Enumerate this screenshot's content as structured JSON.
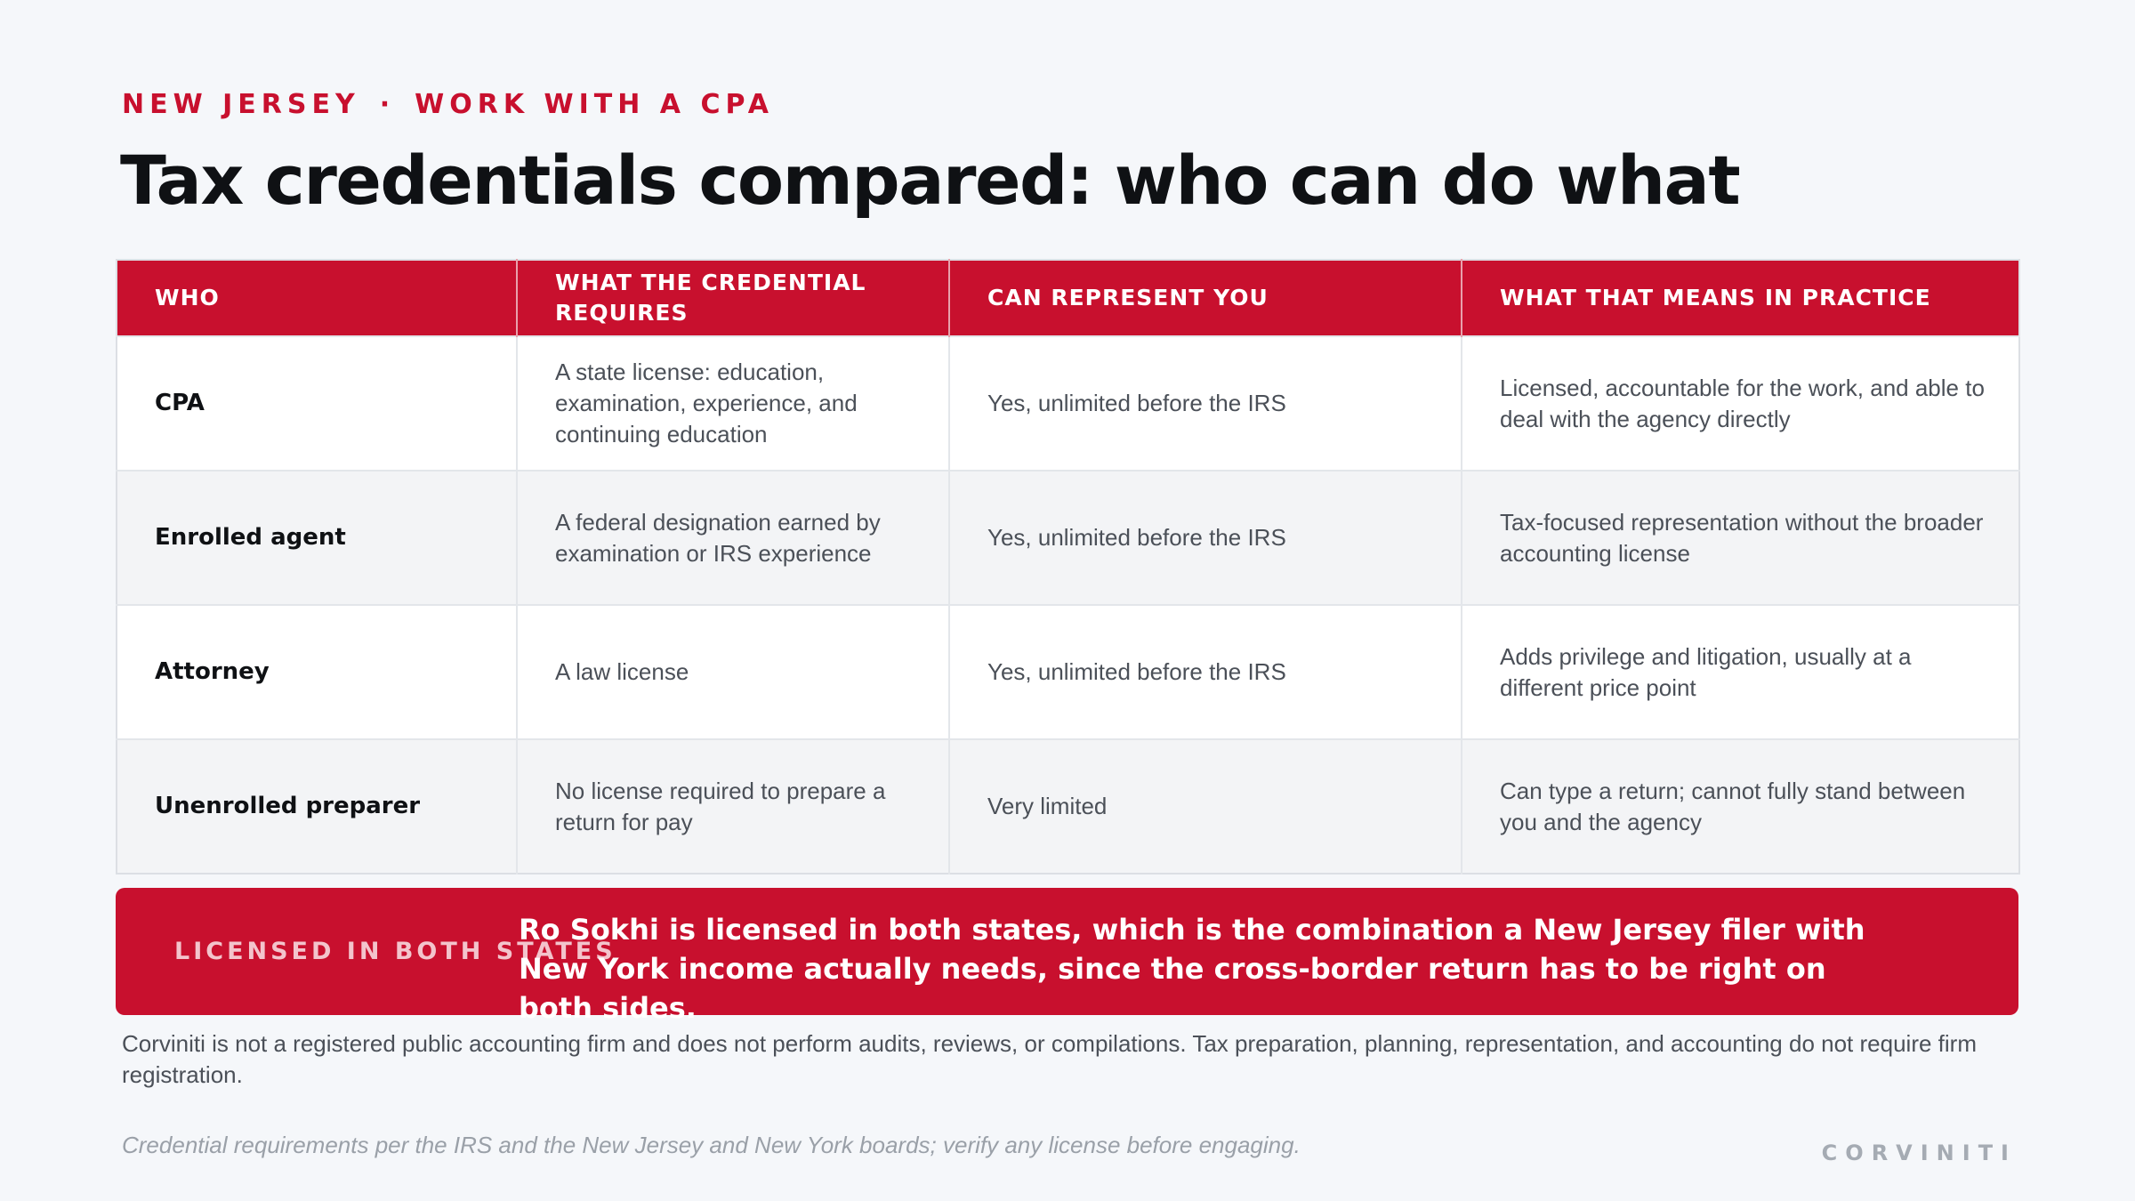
{
  "header": {
    "eyebrow_left": "NEW JERSEY",
    "eyebrow_sep": "·",
    "eyebrow_right": "WORK WITH A CPA",
    "title": "Tax credentials compared: who can do what"
  },
  "table": {
    "columns": [
      "WHO",
      "WHAT THE CREDENTIAL REQUIRES",
      "CAN REPRESENT YOU",
      "WHAT THAT MEANS IN PRACTICE"
    ],
    "rows": [
      [
        "CPA",
        "A state license: education, examination, experience, and continuing education",
        "Yes, unlimited before the IRS",
        "Licensed, accountable for the work, and able to deal with the agency directly"
      ],
      [
        "Enrolled agent",
        "A federal designation earned by examination or IRS experience",
        "Yes, unlimited before the IRS",
        "Tax-focused representation without the broader accounting license"
      ],
      [
        "Attorney",
        "A law license",
        "Yes, unlimited before the IRS",
        "Adds privilege and litigation, usually at a different price point"
      ],
      [
        "Unenrolled preparer",
        "No license required to prepare a return for pay",
        "Very limited",
        "Can type a return; cannot fully stand between you and the agency"
      ]
    ]
  },
  "callout": {
    "label": "LICENSED IN BOTH STATES",
    "text": "Ro Sokhi is licensed in both states, which is the combination a New Jersey filer with New York income actually needs, since the cross-border return has to be right on both sides."
  },
  "footer": {
    "disclaimer": "Corviniti is not a registered public accounting firm and does not perform audits, reviews, or compilations. Tax preparation, planning, representation, and accounting do not require firm registration.",
    "source": "Credential requirements per the IRS and the New Jersey and New York boards; verify any license before engaging.",
    "brand": "CORVINITI"
  },
  "colors": {
    "accent": "#c8102e",
    "background": "#f5f7fa",
    "title": "#0f1114",
    "body_text": "#4b5058"
  }
}
